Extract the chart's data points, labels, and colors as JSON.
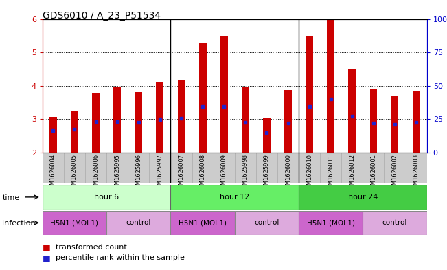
{
  "title": "GDS6010 / A_23_P51534",
  "samples": [
    "GSM1626004",
    "GSM1626005",
    "GSM1626006",
    "GSM1625995",
    "GSM1625996",
    "GSM1625997",
    "GSM1626007",
    "GSM1626008",
    "GSM1626009",
    "GSM1625998",
    "GSM1625999",
    "GSM1626000",
    "GSM1626010",
    "GSM1626011",
    "GSM1626012",
    "GSM1626001",
    "GSM1626002",
    "GSM1626003"
  ],
  "bar_heights": [
    3.05,
    3.25,
    3.8,
    3.95,
    3.82,
    4.12,
    4.15,
    5.3,
    5.48,
    3.95,
    3.02,
    3.87,
    5.5,
    5.97,
    4.5,
    3.9,
    3.68,
    3.84
  ],
  "blue_markers": [
    2.65,
    2.7,
    2.92,
    2.93,
    2.9,
    2.98,
    3.02,
    3.38,
    3.38,
    2.9,
    2.6,
    2.88,
    3.38,
    3.6,
    3.1,
    2.88,
    2.85,
    2.9
  ],
  "y_min": 2.0,
  "y_max": 6.0,
  "y_ticks": [
    2,
    3,
    4,
    5,
    6
  ],
  "y2_ticks": [
    0,
    25,
    50,
    75,
    100
  ],
  "bar_color": "#cc0000",
  "blue_color": "#2222cc",
  "bar_bottom": 2.0,
  "time_groups": [
    {
      "label": "hour 6",
      "start": 0,
      "end": 6,
      "color": "#ccffcc"
    },
    {
      "label": "hour 12",
      "start": 6,
      "end": 12,
      "color": "#66ee66"
    },
    {
      "label": "hour 24",
      "start": 12,
      "end": 18,
      "color": "#44cc44"
    }
  ],
  "infection_groups": [
    {
      "label": "H5N1 (MOI 1)",
      "start": 0,
      "end": 3
    },
    {
      "label": "control",
      "start": 3,
      "end": 6
    },
    {
      "label": "H5N1 (MOI 1)",
      "start": 6,
      "end": 9
    },
    {
      "label": "control",
      "start": 9,
      "end": 12
    },
    {
      "label": "H5N1 (MOI 1)",
      "start": 12,
      "end": 15
    },
    {
      "label": "control",
      "start": 15,
      "end": 18
    }
  ],
  "infection_colors": {
    "H5N1 (MOI 1)": "#cc66cc",
    "control": "#ddaadd"
  },
  "bar_width": 0.35,
  "title_fontsize": 10,
  "axis_color_left": "#cc0000",
  "axis_color_right": "#0000cc",
  "xtick_bg": "#cccccc",
  "grid_color": "#555555"
}
